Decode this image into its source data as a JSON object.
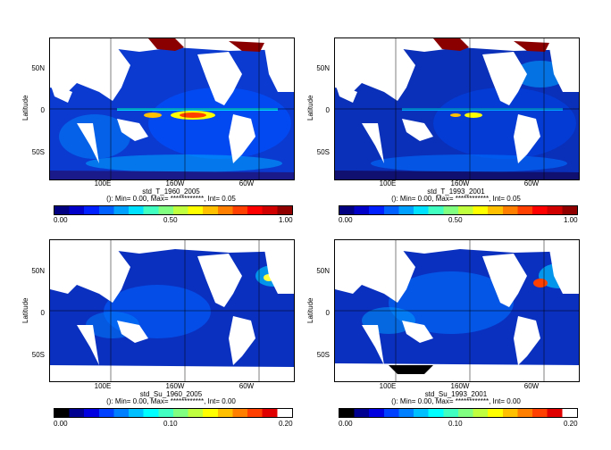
{
  "panels": [
    {
      "title": "std_T_1960_2005",
      "info": "(): Min= 0.00, Max= ************, Int= 0.05",
      "ylabel": "Latitude",
      "yticks": [
        "50N",
        "0",
        "50S"
      ],
      "xticks": [
        "100E",
        "160W",
        "60W"
      ],
      "colorbar_ticks": [
        "0.00",
        "0.50",
        "1.00"
      ],
      "colorbar_colors": [
        "#000080",
        "#0000c8",
        "#0020ff",
        "#0060ff",
        "#00a0ff",
        "#00e0ff",
        "#40ffc0",
        "#80ff80",
        "#c0ff40",
        "#ffff00",
        "#ffc000",
        "#ff8000",
        "#ff4000",
        "#ff0000",
        "#d00000",
        "#900000"
      ]
    },
    {
      "title": "std_T_1993_2001",
      "info": "(): Min= 0.00, Max= ************, Int= 0.05",
      "ylabel": "Latitude",
      "yticks": [
        "50N",
        "0",
        "50S"
      ],
      "xticks": [
        "100E",
        "160W",
        "60W"
      ],
      "colorbar_ticks": [
        "0.00",
        "0.50",
        "1.00"
      ],
      "colorbar_colors": [
        "#000080",
        "#0000c8",
        "#0020ff",
        "#0060ff",
        "#00a0ff",
        "#00e0ff",
        "#40ffc0",
        "#80ff80",
        "#c0ff40",
        "#ffff00",
        "#ffc000",
        "#ff8000",
        "#ff4000",
        "#ff0000",
        "#d00000",
        "#900000"
      ]
    },
    {
      "title": "std_Su_1960_2005",
      "info": "(): Min= 0.00, Max= ************, Int= 0.00",
      "ylabel": "Latitude",
      "yticks": [
        "50N",
        "0",
        "50S"
      ],
      "xticks": [
        "100E",
        "160W",
        "60W"
      ],
      "colorbar_ticks": [
        "0.00",
        "0.10",
        "0.20"
      ],
      "colorbar_colors": [
        "#000000",
        "#000090",
        "#0000e0",
        "#0040ff",
        "#0080ff",
        "#00c0ff",
        "#00ffff",
        "#40ffc0",
        "#80ff80",
        "#c0ff40",
        "#ffff00",
        "#ffc000",
        "#ff8000",
        "#ff4000",
        "#e00000",
        "#ffffff"
      ]
    },
    {
      "title": "std_Su_1993_2001",
      "info": "(): Min= 0.00, Max= ************, Int= 0.00",
      "ylabel": "Latitude",
      "yticks": [
        "50N",
        "0",
        "50S"
      ],
      "xticks": [
        "100E",
        "160W",
        "60W"
      ],
      "colorbar_ticks": [
        "0.00",
        "0.10",
        "0.20"
      ],
      "colorbar_colors": [
        "#000000",
        "#000090",
        "#0000e0",
        "#0040ff",
        "#0080ff",
        "#00c0ff",
        "#00ffff",
        "#40ffc0",
        "#80ff80",
        "#c0ff40",
        "#ffff00",
        "#ffc000",
        "#ff8000",
        "#ff4000",
        "#e00000",
        "#ffffff"
      ]
    }
  ]
}
